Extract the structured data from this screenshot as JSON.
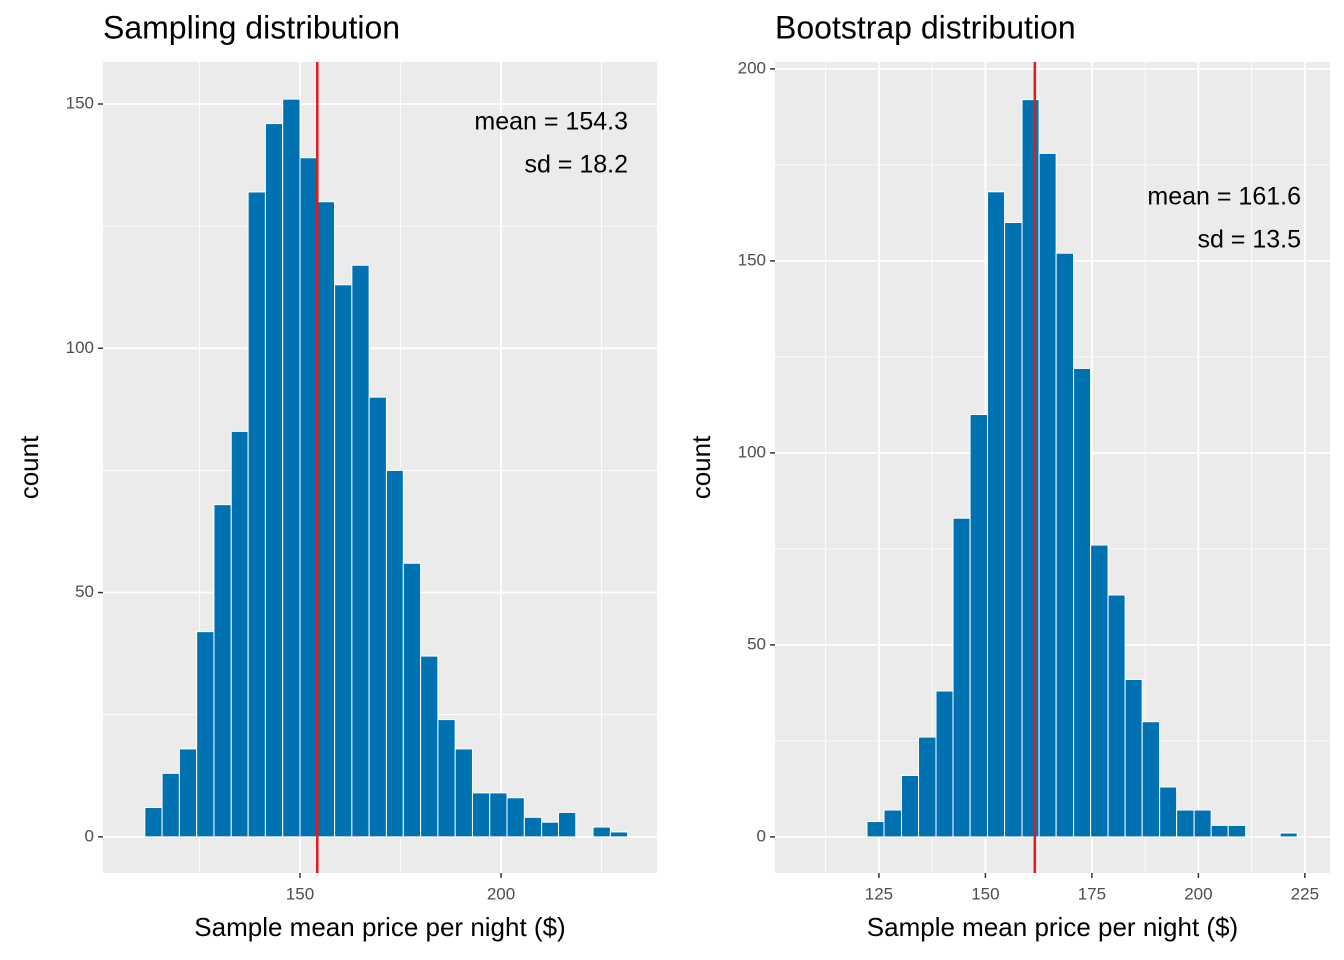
{
  "chart_data": [
    {
      "type": "histogram",
      "title": "Sampling distribution",
      "xlabel": "Sample mean price per night ($)",
      "ylabel": "count",
      "bins": [
        111.4,
        115.7,
        120.0,
        124.3,
        128.6,
        132.9,
        137.1,
        141.4,
        145.7,
        150.0,
        154.3,
        158.6,
        162.9,
        167.2,
        171.5,
        175.7,
        180.0,
        184.3,
        188.6,
        192.9,
        197.2,
        201.5,
        205.8,
        210.1,
        214.3,
        218.6,
        222.9,
        227.2,
        231.5
      ],
      "counts": [
        6,
        13,
        18,
        42,
        68,
        83,
        132,
        146,
        151,
        139,
        130,
        113,
        117,
        90,
        75,
        56,
        37,
        24,
        18,
        9,
        9,
        8,
        4,
        3,
        5,
        0,
        2,
        1
      ],
      "color": "#0072b2",
      "vline": 154.3,
      "vline_color": "#e41a1c",
      "annotations": [
        "mean =  154.3",
        "sd =  18.2"
      ],
      "xlim": [
        101,
        238.8
      ],
      "xticks": [
        150,
        200
      ],
      "ylim": [
        -7.4,
        158.6
      ],
      "yticks": [
        0,
        50,
        100,
        150
      ],
      "grid": true
    },
    {
      "type": "histogram",
      "title": "Bootstrap distribution",
      "xlabel": "Sample mean price per night ($)",
      "ylabel": "count",
      "bins": [
        122.2,
        126.2,
        130.3,
        134.3,
        138.4,
        142.4,
        146.4,
        150.5,
        154.5,
        158.6,
        162.6,
        166.6,
        170.7,
        174.7,
        178.8,
        182.8,
        186.8,
        190.9,
        194.9,
        199.0,
        203.0,
        207.0,
        211.1,
        215.1,
        219.2,
        223.2
      ],
      "counts": [
        4,
        7,
        16,
        26,
        38,
        83,
        110,
        168,
        160,
        192,
        178,
        152,
        122,
        76,
        63,
        41,
        30,
        13,
        7,
        7,
        3,
        3,
        0,
        0,
        1
      ],
      "color": "#0072b2",
      "vline": 161.6,
      "vline_color": "#e41a1c",
      "annotations": [
        "mean =  161.6",
        "sd =  13.5"
      ],
      "xlim": [
        100.6,
        230.9
      ],
      "xticks": [
        125,
        150,
        175,
        200,
        225
      ],
      "ylim": [
        -9.4,
        201.8
      ],
      "yticks": [
        0,
        50,
        100,
        150,
        200
      ],
      "grid": true
    }
  ]
}
